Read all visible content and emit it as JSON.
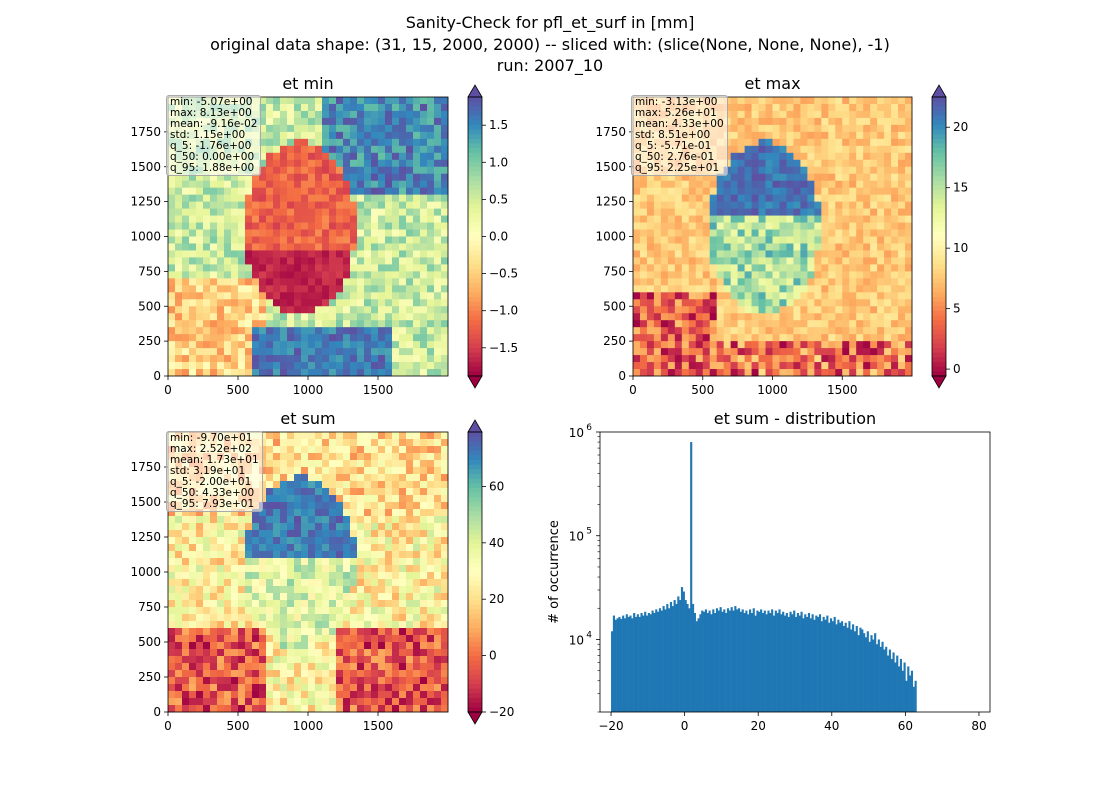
{
  "figure": {
    "title_lines": [
      "Sanity-Check for pfl_et_surf in [mm]",
      "original data shape: (31, 15, 2000, 2000) -- sliced with: (slice(None, None, None), -1)",
      "run: 2007_10"
    ]
  },
  "colormap": "Spectral",
  "map_axes": {
    "x_ticks": [
      0,
      500,
      1000,
      1500
    ],
    "y_ticks": [
      0,
      250,
      500,
      750,
      1000,
      1250,
      1500,
      1750
    ],
    "extent": [
      0,
      2000
    ]
  },
  "chart_data": [
    {
      "type": "heatmap",
      "title": "et min",
      "colorbar": {
        "min": -1.88,
        "max": 1.88,
        "ticks": [
          -1.5,
          -1.0,
          -0.5,
          0.0,
          0.5,
          1.0,
          1.5
        ],
        "tick_labels": [
          "−1.5",
          "−1.0",
          "−0.5",
          "0.0",
          "0.5",
          "1.0",
          "1.5"
        ],
        "extend": "both"
      },
      "stats": [
        "min: -5.07e+00",
        "max: 8.13e+00",
        "mean: -9.16e-02",
        "std: 1.15e+00",
        "q_5: -1.76e+00",
        "q_50: 0.00e+00",
        "q_95: 1.88e+00"
      ]
    },
    {
      "type": "heatmap",
      "title": "et max",
      "colorbar": {
        "min": -0.571,
        "max": 22.5,
        "ticks": [
          0,
          5,
          10,
          15,
          20
        ],
        "tick_labels": [
          "0",
          "5",
          "10",
          "15",
          "20"
        ],
        "extend": "both"
      },
      "stats": [
        "min: -3.13e+00",
        "max: 5.26e+01",
        "mean: 4.33e+00",
        "std: 8.51e+00",
        "q_5: -5.71e-01",
        "q_50: 2.76e-01",
        "q_95: 2.25e+01"
      ]
    },
    {
      "type": "heatmap",
      "title": "et sum",
      "colorbar": {
        "min": -20.0,
        "max": 79.3,
        "ticks": [
          -20,
          0,
          20,
          40,
          60
        ],
        "tick_labels": [
          "−20",
          "0",
          "20",
          "40",
          "60"
        ],
        "extend": "both"
      },
      "stats": [
        "min: -9.70e+01",
        "max: 2.52e+02",
        "mean: 1.73e+01",
        "std: 3.19e+01",
        "q_5: -2.00e+01",
        "q_50: 4.33e+00",
        "q_95: 7.93e+01"
      ]
    },
    {
      "type": "bar",
      "title": "et sum - distribution",
      "xlabel": "",
      "ylabel": "# of occurrence",
      "y_scale": "log",
      "ylim": [
        2000,
        1000000
      ],
      "x_ticks": [
        -20,
        0,
        20,
        40,
        60,
        80
      ],
      "x_tick_labels": [
        "−20",
        "0",
        "20",
        "40",
        "60",
        "80"
      ],
      "y_tick_labels": [
        "10",
        "10",
        "10"
      ],
      "y_tick_exponents": [
        "4",
        "5",
        "6"
      ],
      "y_ticks": [
        10000,
        100000,
        1000000
      ],
      "xlim": [
        -23,
        83
      ],
      "bar_color": "#1f77b4",
      "bins": {
        "start": -20.0,
        "width": 0.5
      },
      "counts": [
        12000,
        17000,
        15500,
        16000,
        16500,
        15800,
        17000,
        16000,
        17500,
        16500,
        17000,
        16000,
        18000,
        16500,
        17500,
        16500,
        18000,
        17000,
        18500,
        17000,
        18000,
        17500,
        19000,
        18000,
        19500,
        18500,
        20000,
        19000,
        21000,
        19500,
        22000,
        20000,
        23000,
        21000,
        24000,
        22000,
        26000,
        24000,
        32000,
        29000,
        24000,
        22000,
        20000,
        800000,
        22000,
        18000,
        15000,
        16000,
        17500,
        19000,
        18500,
        19500,
        18000,
        19000,
        17500,
        19500,
        18000,
        20000,
        19000,
        20500,
        18500,
        19500,
        18000,
        20000,
        19000,
        20500,
        19000,
        21000,
        19500,
        20000,
        18500,
        19500,
        18000,
        19000,
        17500,
        19500,
        18000,
        20000,
        17000,
        19000,
        18500,
        19500,
        18000,
        19000,
        17500,
        19000,
        18000,
        19500,
        17000,
        19000,
        18000,
        19500,
        17500,
        18500,
        17000,
        18000,
        16500,
        18500,
        17500,
        19000,
        16500,
        18000,
        17000,
        18500,
        16000,
        17500,
        16500,
        18000,
        16000,
        17500,
        15500,
        17000,
        16500,
        17500,
        15000,
        16500,
        15500,
        17000,
        14500,
        16000,
        15000,
        16500,
        14000,
        15500,
        14500,
        15000,
        13500,
        14500,
        13000,
        15000,
        12500,
        14000,
        12000,
        13500,
        11000,
        13000,
        12500,
        11500,
        10500,
        12000,
        9500,
        11000,
        10000,
        11500,
        9000,
        10000,
        8500,
        9500,
        8000,
        8500,
        7000,
        8000,
        6500,
        7500,
        6000,
        7000,
        5500,
        6500,
        5000,
        6000,
        4000,
        5500,
        4500,
        5000,
        3500,
        4000
      ]
    }
  ]
}
